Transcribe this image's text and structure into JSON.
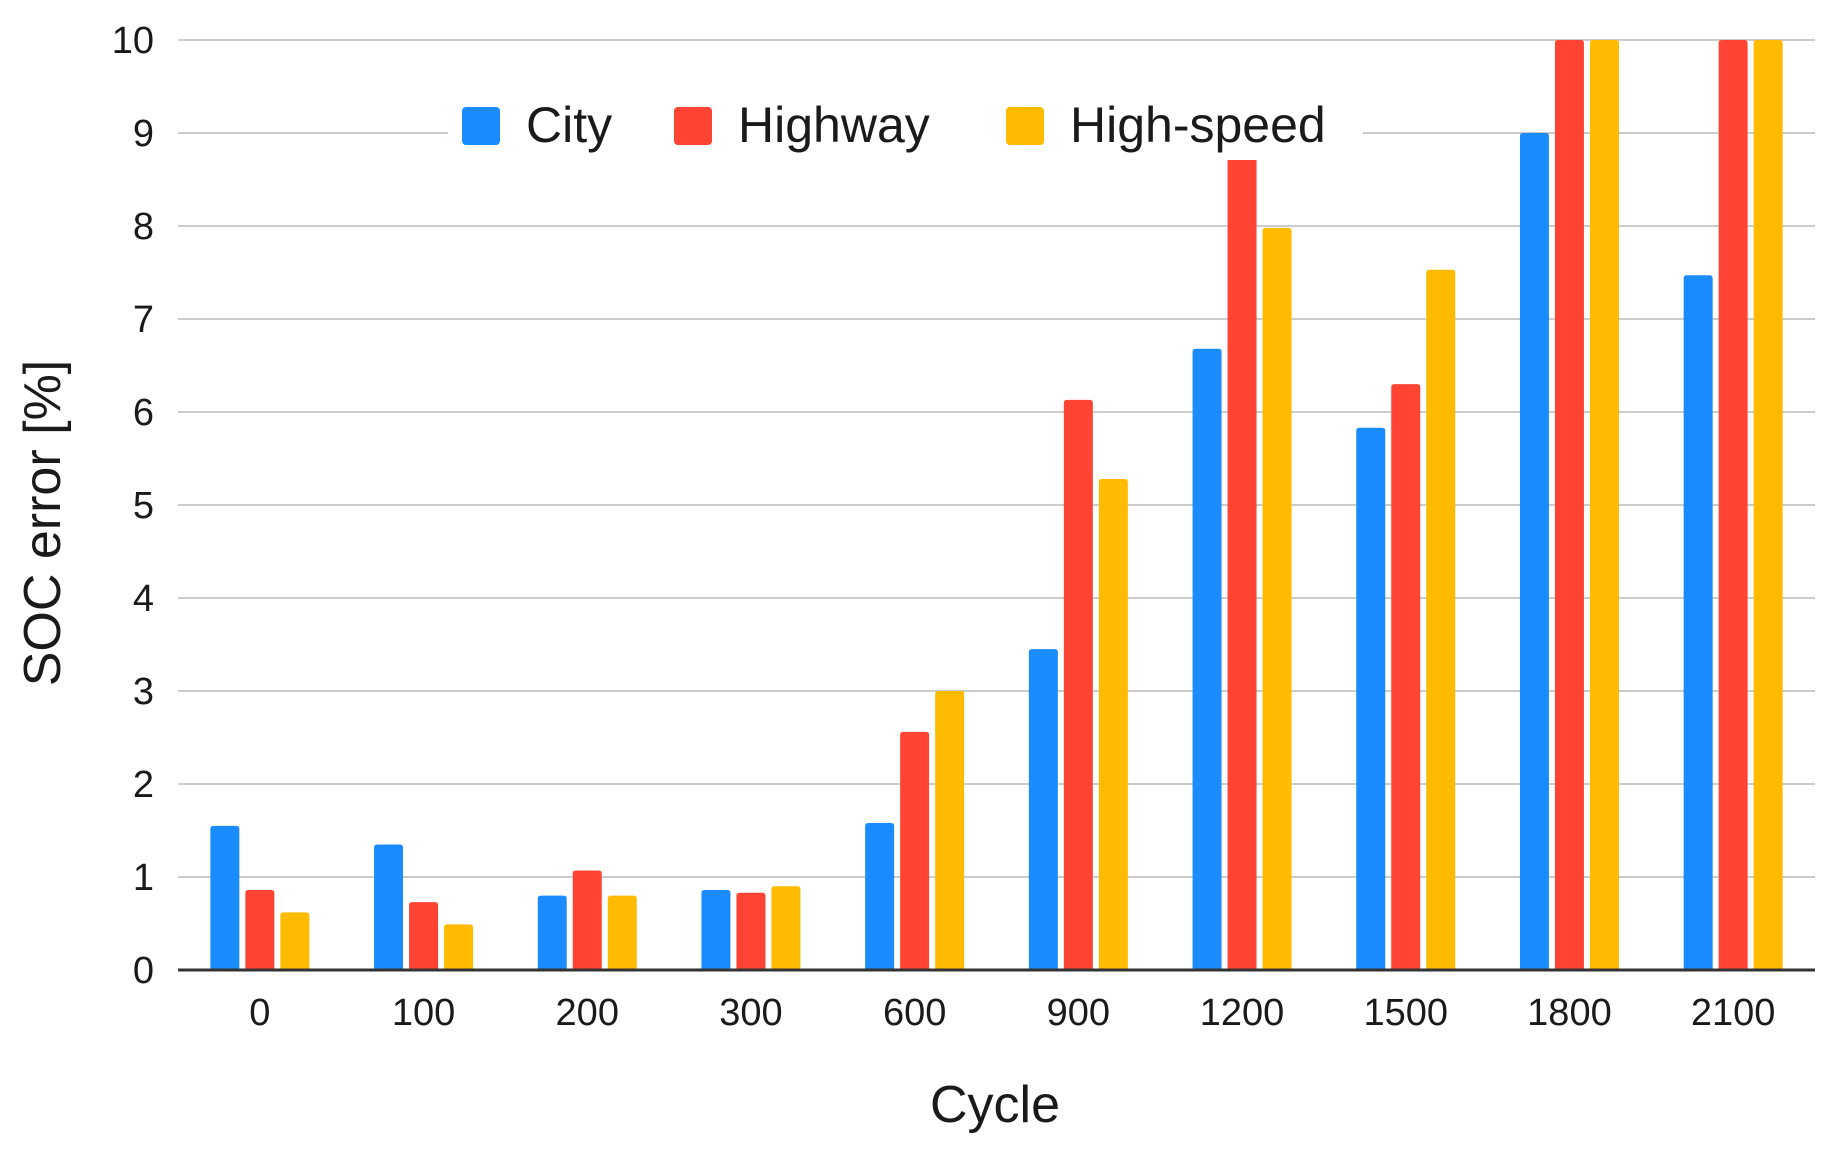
{
  "chart_data": {
    "type": "bar",
    "title": "",
    "xlabel": "Cycle",
    "ylabel": "SOC error [%]",
    "ylim": [
      0,
      10
    ],
    "yticks": [
      "0",
      "1",
      "2",
      "3",
      "4",
      "5",
      "6",
      "7",
      "8",
      "9",
      "10"
    ],
    "grid": true,
    "legend_position": "top-center",
    "categories": [
      "0",
      "100",
      "200",
      "300",
      "600",
      "900",
      "1200",
      "1500",
      "1800",
      "2100"
    ],
    "series": [
      {
        "name": "City",
        "color": "#1a8cff",
        "values": [
          1.55,
          1.35,
          0.8,
          0.86,
          1.58,
          3.45,
          6.68,
          5.83,
          9.0,
          7.47
        ]
      },
      {
        "name": "Highway",
        "color": "#ff4433",
        "values": [
          0.86,
          0.73,
          1.07,
          0.83,
          2.56,
          6.13,
          8.87,
          6.3,
          10,
          10
        ]
      },
      {
        "name": "High-speed",
        "color": "#ffbb00",
        "values": [
          0.62,
          0.49,
          0.8,
          0.9,
          3.0,
          5.28,
          7.98,
          7.53,
          10,
          10
        ]
      }
    ]
  }
}
